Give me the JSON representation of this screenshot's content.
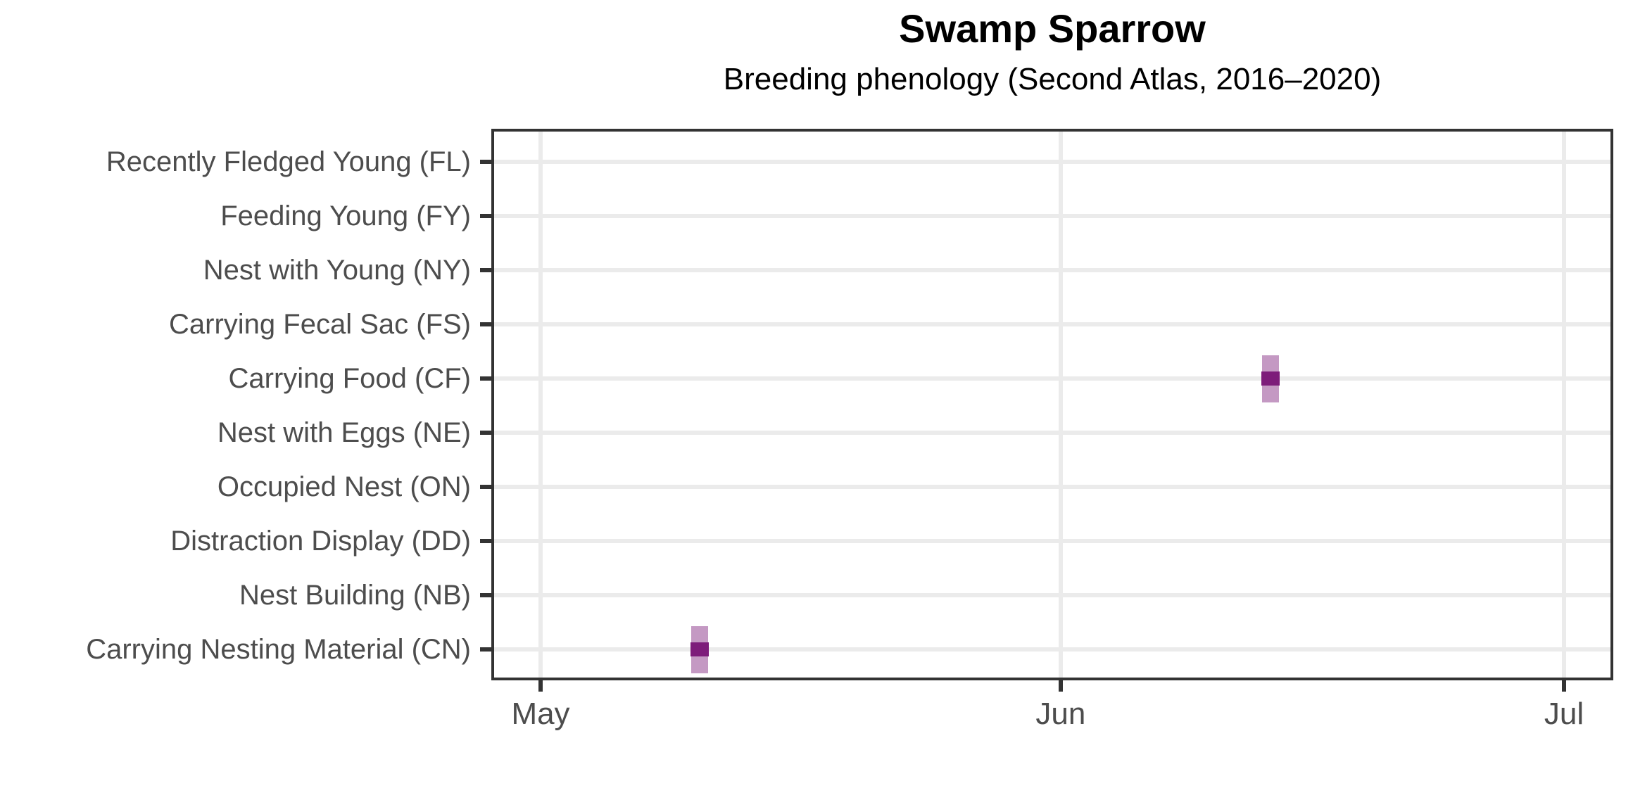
{
  "title": "Swamp Sparrow",
  "subtitle": "Breeding phenology (Second Atlas, 2016–2020)",
  "chart_data": {
    "type": "scatter",
    "subtype": "point-with-vertical-range",
    "title": "Swamp Sparrow",
    "subtitle": "Breeding phenology (Second Atlas, 2016–2020)",
    "xlabel": "",
    "ylabel": "",
    "legend": "none",
    "grid": {
      "major": true,
      "minor": false,
      "major_color": "#ebebeb"
    },
    "y_categories_top_to_bottom": [
      "Recently Fledged Young (FL)",
      "Feeding Young (FY)",
      "Nest with Young (NY)",
      "Carrying Fecal Sac (FS)",
      "Carrying Food (CF)",
      "Nest with Eggs (NE)",
      "Occupied Nest (ON)",
      "Distraction Display (DD)",
      "Nest Building (NB)",
      "Carrying Nesting Material (CN)"
    ],
    "x_axis": {
      "tick_labels": [
        "May",
        "Jun",
        "Jul"
      ],
      "tick_day_offsets_from_may1": [
        0,
        31,
        61
      ],
      "range_days_from_may1": [
        -3,
        64
      ]
    },
    "points": [
      {
        "category": "Carrying Nesting Material (CN)",
        "approx_date": "May 10",
        "day_offset_from_may1": 9.5
      },
      {
        "category": "Carrying Food (CF)",
        "approx_date": "Jun 13",
        "day_offset_from_may1": 43.5
      }
    ],
    "marker_style": {
      "point_color": "#7d1c7a",
      "range_color": "#7d1c7a",
      "range_opacity": 0.45
    },
    "theme_colors": {
      "panel_border": "#333333",
      "tick_color": "#333333",
      "axis_text": "#4d4d4d",
      "title_text": "#000000",
      "background": "#ffffff"
    }
  }
}
